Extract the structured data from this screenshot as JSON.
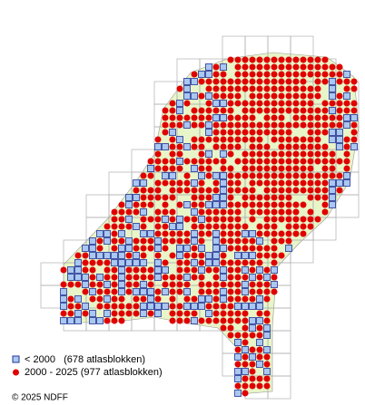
{
  "legend": {
    "items": [
      {
        "label": "< 2000   (678 atlasblokken)"
      },
      {
        "label": "2000 - 2025 (977 atlasblokken)"
      }
    ]
  },
  "footer": {
    "copyright": "© 2025 NDFF"
  }
}
